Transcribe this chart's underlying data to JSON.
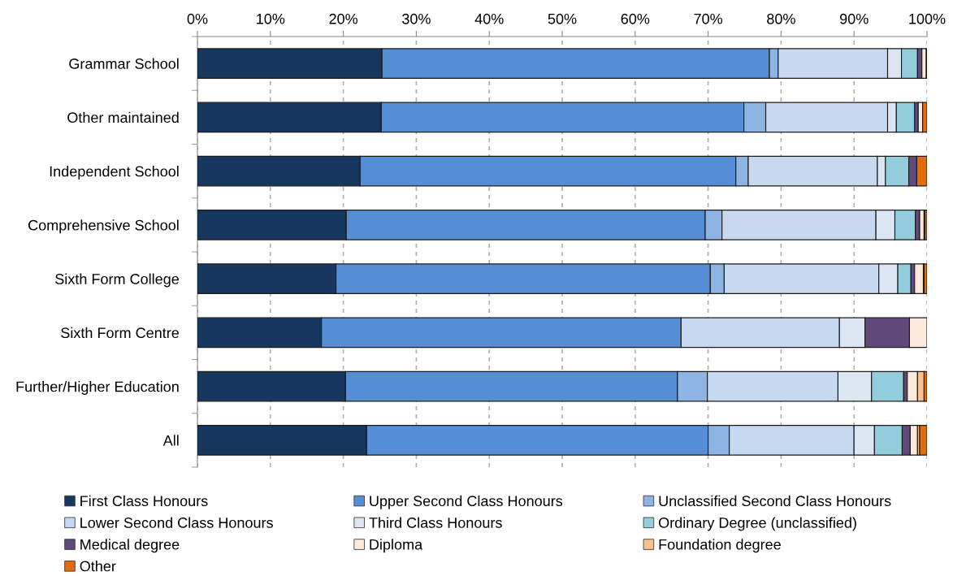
{
  "chart_data": {
    "type": "bar",
    "orientation": "horizontal",
    "stacked": true,
    "categories": [
      "Grammar School",
      "Other maintained",
      "Independent School",
      "Comprehensive School",
      "Sixth Form College",
      "Sixth Form Centre",
      "Further/Higher Education",
      "All"
    ],
    "series": [
      {
        "name": "First Class Honours",
        "color": "#17375e",
        "values": [
          25.3,
          25.2,
          22.3,
          20.4,
          19.0,
          17.0,
          20.3,
          23.2
        ]
      },
      {
        "name": "Upper Second Class Honours",
        "color": "#558ed5",
        "values": [
          53.1,
          49.7,
          51.5,
          49.2,
          51.3,
          49.3,
          45.5,
          46.8
        ]
      },
      {
        "name": "Unclassified Second Class Honours",
        "color": "#8eb4e3",
        "values": [
          1.2,
          3.0,
          1.7,
          2.3,
          1.9,
          0,
          4.1,
          2.9
        ]
      },
      {
        "name": "Lower Second Class Honours",
        "color": "#c6d9f1",
        "values": [
          15.0,
          16.7,
          17.7,
          21.1,
          21.2,
          21.7,
          17.9,
          17.1
        ]
      },
      {
        "name": "Third Class Honours",
        "color": "#dce6f2",
        "values": [
          1.9,
          1.2,
          1.1,
          2.6,
          2.6,
          3.5,
          4.6,
          2.8
        ]
      },
      {
        "name": "Ordinary Degree (unclassified)",
        "color": "#93cddd",
        "values": [
          2.2,
          2.5,
          3.2,
          2.8,
          1.8,
          0,
          4.4,
          3.8
        ]
      },
      {
        "name": "Medical degree",
        "color": "#604a7b",
        "values": [
          0.6,
          0.5,
          1.1,
          0.6,
          0.5,
          6.1,
          0.5,
          1.1
        ]
      },
      {
        "name": "Diploma",
        "color": "#fdeada",
        "values": [
          0.6,
          0.6,
          0,
          0.6,
          1.2,
          2.4,
          1.4,
          1.0
        ]
      },
      {
        "name": "Foundation degree",
        "color": "#fac090",
        "values": [
          0,
          0,
          0,
          0.1,
          0.1,
          0,
          0.9,
          0.3
        ]
      },
      {
        "name": "Other",
        "color": "#e46c0a",
        "values": [
          0.1,
          0.6,
          1.4,
          0.3,
          0.4,
          0,
          0.4,
          1.0
        ]
      }
    ],
    "xlim": [
      0,
      100
    ],
    "xticks": [
      {
        "value": 0,
        "label": "0%"
      },
      {
        "value": 10,
        "label": "10%"
      },
      {
        "value": 20,
        "label": "20%"
      },
      {
        "value": 30,
        "label": "30%"
      },
      {
        "value": 40,
        "label": "40%"
      },
      {
        "value": 50,
        "label": "50%"
      },
      {
        "value": 60,
        "label": "60%"
      },
      {
        "value": 70,
        "label": "70%"
      },
      {
        "value": 80,
        "label": "80%"
      },
      {
        "value": 90,
        "label": "90%"
      },
      {
        "value": 100,
        "label": "100%"
      }
    ],
    "grid": "x",
    "legend": "bottom"
  }
}
